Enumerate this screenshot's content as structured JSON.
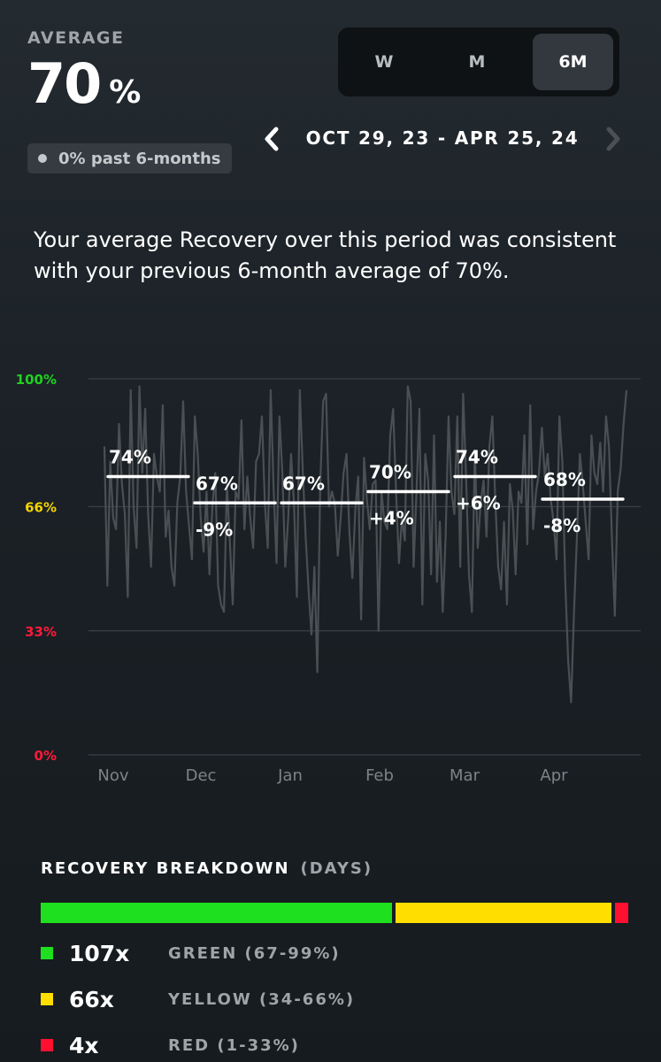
{
  "header": {
    "average_label": "AVERAGE",
    "average_value": "70",
    "average_unit": "%",
    "past_badge": "0% past 6-months"
  },
  "range_toggle": {
    "options": [
      "W",
      "M",
      "6M"
    ],
    "selected": "6M"
  },
  "date_nav": {
    "range": "OCT 29, 23 - APR 25, 24",
    "prev_icon": "chevron-left-icon",
    "next_icon": "chevron-right-icon"
  },
  "summary": "Your average Recovery over this period was consistent with your previous 6-month average of 70%.",
  "chart_data": {
    "type": "line",
    "title": "",
    "xlabel": "",
    "ylabel": "",
    "ylim": [
      0,
      100
    ],
    "y_ticks": [
      {
        "value": 100,
        "label": "100%",
        "color": "#20d020"
      },
      {
        "value": 66,
        "label": "66%",
        "color": "#f4d400"
      },
      {
        "value": 33,
        "label": "33%",
        "color": "#ff1a3a"
      },
      {
        "value": 0,
        "label": "0%",
        "color": "#ff1a3a"
      }
    ],
    "x_labels": [
      "Nov",
      "Dec",
      "Jan",
      "Feb",
      "Mar",
      "Apr"
    ],
    "grid": true,
    "daily_recovery": [
      82,
      45,
      78,
      63,
      60,
      88,
      72,
      64,
      42,
      97,
      66,
      55,
      98,
      75,
      92,
      64,
      50,
      80,
      74,
      70,
      93,
      58,
      65,
      50,
      45,
      67,
      74,
      94,
      70,
      61,
      52,
      90,
      80,
      63,
      54,
      70,
      48,
      66,
      75,
      45,
      40,
      38,
      72,
      57,
      40,
      70,
      68,
      89,
      60,
      74,
      63,
      55,
      78,
      80,
      90,
      67,
      55,
      97,
      71,
      51,
      90,
      75,
      50,
      63,
      80,
      67,
      42,
      97,
      76,
      58,
      44,
      32,
      50,
      22,
      72,
      94,
      96,
      66,
      70,
      67,
      53,
      63,
      75,
      80,
      59,
      47,
      65,
      74,
      36,
      79,
      68,
      60,
      72,
      73,
      33,
      70,
      62,
      60,
      85,
      92,
      70,
      51,
      63,
      57,
      98,
      94,
      50,
      70,
      92,
      40,
      80,
      73,
      48,
      85,
      46,
      62,
      38,
      58,
      90,
      70,
      64,
      90,
      50,
      96,
      74,
      48,
      38,
      81,
      55,
      67,
      73,
      58,
      82,
      90,
      68,
      50,
      44,
      62,
      40,
      72,
      65,
      48,
      70,
      67,
      85,
      56,
      93,
      60,
      70,
      75,
      87,
      74,
      80,
      68,
      62,
      52,
      90,
      78,
      46,
      25,
      14,
      38,
      58,
      80,
      72,
      62,
      52,
      85,
      75,
      72,
      83,
      70,
      90,
      82,
      58,
      37,
      70,
      76,
      88,
      97
    ],
    "period_averages": [
      {
        "month": "Nov",
        "average": 74,
        "avg_label": "74%",
        "change_label": ""
      },
      {
        "month": "Dec",
        "average": 67,
        "avg_label": "67%",
        "change_label": "-9%"
      },
      {
        "month": "Jan",
        "average": 67,
        "avg_label": "67%",
        "change_label": ""
      },
      {
        "month": "Feb",
        "average": 70,
        "avg_label": "70%",
        "change_label": "+4%"
      },
      {
        "month": "Mar",
        "average": 74,
        "avg_label": "74%",
        "change_label": "+6%"
      },
      {
        "month": "Apr",
        "average": 68,
        "avg_label": "68%",
        "change_label": "-8%"
      }
    ]
  },
  "breakdown": {
    "title": "RECOVERY BREAKDOWN",
    "unit": "(DAYS)",
    "items": [
      {
        "count": 107,
        "count_label": "107x",
        "name": "GREEN (67-99%)",
        "color": "#1fe01f"
      },
      {
        "count": 66,
        "count_label": "66x",
        "name": "YELLOW (34-66%)",
        "color": "#ffde00"
      },
      {
        "count": 4,
        "count_label": "4x",
        "name": "RED (1-33%)",
        "color": "#ff1030"
      }
    ]
  }
}
